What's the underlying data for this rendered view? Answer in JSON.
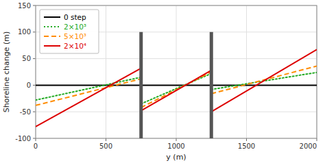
{
  "chart_data": {
    "type": "line",
    "x_label": "y (m)",
    "y_label": "Shoreline change (m)",
    "x": [
      0,
      750,
      null,
      750,
      1250,
      null,
      1250,
      2000
    ],
    "series": [
      {
        "name": "0 step",
        "color": "black",
        "line_style": "solid",
        "values": [
          0,
          0,
          null,
          0,
          0,
          null,
          0,
          0
        ]
      },
      {
        "name": "2×10³",
        "color": "#22AA22",
        "line_style": "dotted",
        "values": [
          -28,
          15,
          null,
          -35,
          22,
          null,
          -8,
          24
        ]
      },
      {
        "name": "5×10³",
        "color": "#FF8C00",
        "line_style": "dashed",
        "values": [
          -38,
          12,
          null,
          -42,
          25,
          null,
          -16,
          36
        ]
      },
      {
        "name": "2×10⁴",
        "color": "#DD0000",
        "line_style": "solid",
        "values": [
          -78,
          32,
          null,
          -48,
          28,
          null,
          -50,
          67
        ]
      }
    ],
    "groynes": {
      "x": [
        750,
        1250
      ],
      "ylim": [
        -100,
        100
      ],
      "color": "#555555"
    },
    "xlim": [
      0,
      2000
    ],
    "ylim": [
      -100,
      150
    ],
    "xticks": [
      0,
      500,
      1000,
      1500,
      2000
    ],
    "yticks": [
      -100,
      -50,
      0,
      50,
      100,
      150
    ],
    "grid": true,
    "legend": "upper left"
  }
}
